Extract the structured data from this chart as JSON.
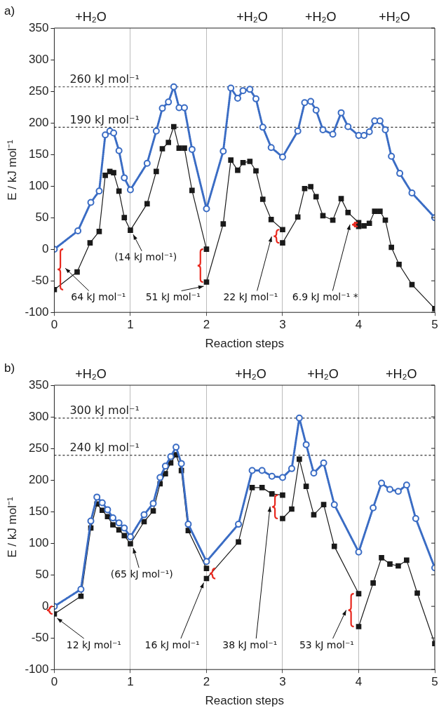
{
  "chart_data": [
    {
      "type": "line",
      "title": "a)",
      "xlabel": "Reaction steps",
      "ylabel": "E / kJ mol⁻¹",
      "xlim": [
        0,
        5
      ],
      "xticks": [
        0,
        1,
        2,
        3,
        4,
        5
      ],
      "ylim": [
        -100,
        350
      ],
      "yticks": [
        -100,
        -50,
        0,
        50,
        100,
        150,
        200,
        250,
        300,
        350
      ],
      "grid": "x",
      "legend": false,
      "ref_lines": [
        {
          "axis": "y",
          "value": 257,
          "label": "260 kJ mol⁻¹",
          "line_style": "dashed"
        },
        {
          "axis": "y",
          "value": 193,
          "label": "190 kJ mol⁻¹",
          "line_style": "dashed"
        }
      ],
      "annotations": [
        "+H₂O",
        "+H₂O",
        "+H₂O",
        "+H₂O",
        "64 kJ mol⁻¹",
        {
          "text": "(14 kJ mol⁻¹)",
          "x": 1,
          "y": 30
        },
        {
          "text": "51 kJ mol⁻¹",
          "x": 2,
          "y": -52
        },
        "22 kJ mol⁻¹",
        "6.9 kJ mol⁻¹ *"
      ],
      "series": [
        {
          "color": "#3a6cc4",
          "line_style": "dotted",
          "marker": "circle",
          "x": [
            0,
            0.31,
            0.48,
            0.59,
            0.67,
            0.73,
            0.78,
            0.85,
            0.92,
            1.0,
            1.22,
            1.34,
            1.42,
            1.5,
            1.57,
            1.64,
            1.71,
            1.81,
            2.0,
            2.22,
            2.32,
            2.41,
            2.48,
            2.57,
            2.65,
            2.74,
            2.85,
            3.0,
            3.2,
            3.29,
            3.37,
            3.44,
            3.53,
            3.66,
            3.77,
            3.86,
            4.0,
            4.07,
            4.14,
            4.21,
            4.28,
            4.35,
            4.43,
            4.54,
            4.7,
            5.0
          ],
          "values": [
            0,
            29,
            74,
            92,
            181,
            187,
            184,
            156,
            113,
            94,
            136,
            187,
            223,
            233,
            257,
            224,
            224,
            158,
            64,
            155,
            255,
            239,
            251,
            253,
            238,
            193,
            161,
            146,
            187,
            232,
            234,
            220,
            189,
            182,
            216,
            194,
            180,
            180,
            186,
            203,
            203,
            189,
            147,
            120,
            89,
            50
          ]
        },
        {
          "color": "#1a1a1a",
          "line_style": "solid",
          "marker": "square",
          "x": [
            0,
            0.3,
            0.47,
            0.59,
            0.67,
            0.73,
            0.78,
            0.85,
            0.92,
            1.0,
            1.22,
            1.34,
            1.42,
            1.5,
            1.57,
            1.64,
            1.71,
            1.81,
            2
          ],
          "values": [
            -64,
            -36,
            10,
            28,
            117,
            123,
            121,
            92,
            50,
            30,
            72,
            123,
            159,
            169,
            194,
            160,
            160,
            93,
            0
          ]
        },
        {
          "color": "#1a1a1a",
          "line_style": "solid",
          "marker": "square",
          "x": [
            2,
            2.22,
            2.32,
            2.41,
            2.48,
            2.57,
            2.65,
            2.74,
            2.85,
            3
          ],
          "values": [
            -52,
            40,
            141,
            125,
            137,
            139,
            124,
            79,
            47,
            31
          ]
        },
        {
          "color": "#1a1a1a",
          "line_style": "solid",
          "marker": "square",
          "x": [
            3,
            3.2,
            3.29,
            3.37,
            3.44,
            3.53,
            3.66,
            3.77,
            3.86,
            4
          ],
          "values": [
            10,
            51,
            96,
            99,
            83,
            53,
            46,
            80,
            58,
            42
          ]
        },
        {
          "color": "#1a1a1a",
          "line_style": "solid",
          "marker": "square",
          "x": [
            4,
            4.07,
            4.14,
            4.21,
            4.28,
            4.35,
            4.43,
            4.53,
            4.7,
            5
          ],
          "values": [
            36,
            37,
            41,
            60,
            60,
            46,
            3,
            -24,
            -56,
            -94
          ]
        }
      ]
    },
    {
      "type": "line",
      "title": "b)",
      "xlabel": "Reaction steps",
      "ylabel": "E / kJ mol⁻¹",
      "xlim": [
        0,
        5
      ],
      "xticks": [
        0,
        1,
        2,
        3,
        4,
        5
      ],
      "ylim": [
        -100,
        350
      ],
      "yticks": [
        -100,
        -50,
        0,
        50,
        100,
        150,
        200,
        250,
        300,
        350
      ],
      "grid": "x",
      "legend": false,
      "ref_lines": [
        {
          "axis": "y",
          "value": 298,
          "label": "300 kJ mol⁻¹",
          "line_style": "dashed"
        },
        {
          "axis": "y",
          "value": 239,
          "label": "240 kJ mol⁻¹",
          "line_style": "dashed"
        }
      ],
      "annotations": [
        "+H₂O",
        "+H₂O",
        "+H₂O",
        "+H₂O",
        {
          "text": "(65 kJ mol⁻¹)",
          "x": 1,
          "y": 99
        },
        {
          "text": "12 kJ mol⁻¹",
          "x": 0,
          "y": -12
        },
        {
          "text": "16 kJ mol⁻¹",
          "x": 2,
          "y": 44
        },
        "38 kJ mol⁻¹",
        "53 kJ mol⁻¹"
      ],
      "series": [
        {
          "color": "#3a6cc4",
          "line_style": "dotted",
          "marker": "circle",
          "x": [
            0,
            0.35,
            0.48,
            0.56,
            0.63,
            0.7,
            0.77,
            0.85,
            0.92,
            1.0,
            1.18,
            1.3,
            1.39,
            1.46,
            1.53,
            1.6,
            1.67,
            1.76,
            2.0,
            2.42,
            2.6,
            2.73,
            2.86,
            3.0,
            3.12,
            3.22,
            3.31,
            3.41,
            3.54,
            3.68,
            4.0,
            4.19,
            4.3,
            4.41,
            4.52,
            4.63,
            4.75,
            5.0
          ],
          "values": [
            0,
            27,
            135,
            173,
            164,
            153,
            140,
            132,
            124,
            110,
            145,
            163,
            204,
            222,
            237,
            252,
            226,
            130,
            71,
            130,
            215,
            215,
            206,
            204,
            218,
            298,
            256,
            211,
            227,
            161,
            86,
            156,
            195,
            185,
            182,
            192,
            139,
            61
          ]
        },
        {
          "color": "#1a1a1a",
          "line_style": "solid",
          "marker": "square",
          "x": [
            0,
            0.35,
            0.48,
            0.56,
            0.63,
            0.7,
            0.77,
            0.85,
            0.92,
            1.0,
            1.18,
            1.3,
            1.39,
            1.46,
            1.53,
            1.6,
            1.67,
            1.76,
            2
          ],
          "values": [
            -12,
            16,
            124,
            162,
            152,
            142,
            129,
            121,
            112,
            99,
            134,
            151,
            194,
            210,
            227,
            240,
            215,
            120,
            60
          ]
        },
        {
          "color": "#1a1a1a",
          "line_style": "solid",
          "marker": "square",
          "x": [
            2,
            2.42,
            2.6,
            2.73,
            2.86,
            3
          ],
          "values": [
            44,
            102,
            188,
            188,
            178,
            176
          ]
        },
        {
          "color": "#1a1a1a",
          "line_style": "solid",
          "marker": "square",
          "x": [
            3,
            3.12,
            3.22,
            3.31,
            3.41,
            3.54,
            3.68,
            4
          ],
          "values": [
            139,
            154,
            233,
            190,
            145,
            161,
            95,
            20
          ]
        },
        {
          "color": "#1a1a1a",
          "line_style": "solid",
          "marker": "square",
          "x": [
            4,
            4.19,
            4.3,
            4.41,
            4.52,
            4.63,
            4.77,
            5
          ],
          "values": [
            -32,
            37,
            77,
            67,
            64,
            73,
            21,
            -59
          ]
        }
      ]
    }
  ]
}
